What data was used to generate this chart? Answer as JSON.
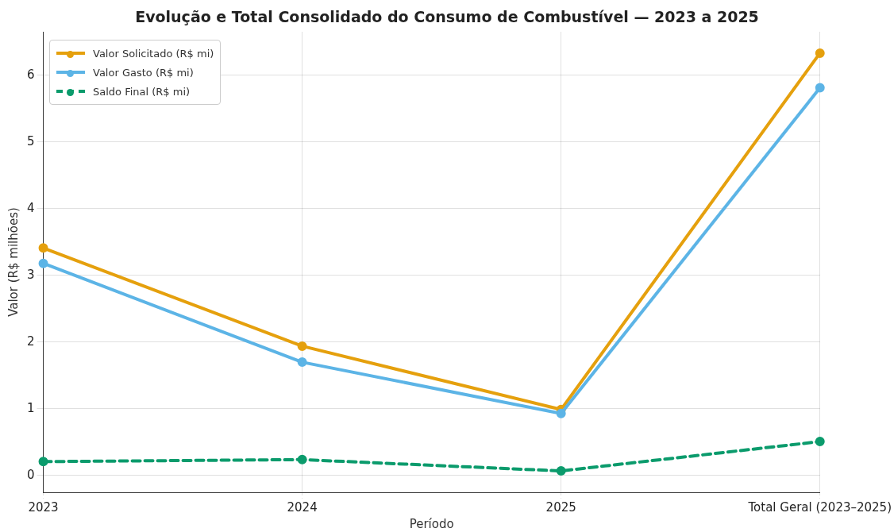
{
  "chart_data": {
    "type": "line",
    "title": "Evolução e Total Consolidado do Consumo de Combustível — 2023 a 2025",
    "xlabel": "Período",
    "ylabel": "Valor (R$ milhões)",
    "categories": [
      "2023",
      "2024",
      "2025",
      "Total Geral (2023–2025)"
    ],
    "series": [
      {
        "name": "Valor Solicitado (R$ mi)",
        "color": "#e5a00d",
        "values": [
          3.41,
          1.94,
          0.99,
          6.33
        ]
      },
      {
        "name": "Valor Gasto (R$ mi)",
        "color": "#5cb4e6",
        "values": [
          3.18,
          1.7,
          0.93,
          5.81
        ]
      },
      {
        "name": "Saldo Final (R$ mi)",
        "color": "#0b9b6c",
        "values": [
          0.21,
          0.24,
          0.07,
          0.51
        ],
        "line_style": "dashed"
      }
    ],
    "ylim": [
      -0.25,
      6.65
    ],
    "yticks": [
      0,
      1,
      2,
      3,
      4,
      5,
      6
    ],
    "grid": true,
    "legend": "top left",
    "marker": "circle",
    "line_style": "solid"
  }
}
